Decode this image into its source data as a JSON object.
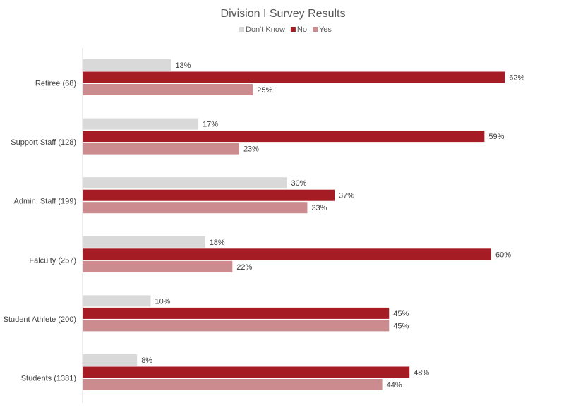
{
  "chart_data": {
    "type": "bar",
    "orientation": "horizontal",
    "title": "Division I Survey Results",
    "xlabel": "",
    "ylabel": "",
    "xlim": [
      0,
      100
    ],
    "grid": false,
    "legend_position": "top",
    "categories": [
      "Retiree (68)",
      "Support Staff (128)",
      "Admin. Staff (199)",
      "Falculty (257)",
      "Student Athlete (200)",
      "Students (1381)"
    ],
    "series": [
      {
        "name": "Don't Know",
        "color": "#d9d9d9",
        "values": [
          13,
          17,
          30,
          18,
          10,
          8
        ],
        "labels": [
          "13%",
          "17%",
          "30%",
          "18%",
          "10%",
          "8%"
        ]
      },
      {
        "name": "No",
        "color": "#a61c24",
        "values": [
          62,
          59,
          37,
          60,
          45,
          48
        ],
        "labels": [
          "62%",
          "59%",
          "37%",
          "60%",
          "45%",
          "48%"
        ]
      },
      {
        "name": "Yes",
        "color": "#cc8c8f",
        "values": [
          25,
          23,
          33,
          22,
          45,
          44
        ],
        "labels": [
          "25%",
          "23%",
          "33%",
          "22%",
          "45%",
          "44%"
        ]
      }
    ]
  }
}
